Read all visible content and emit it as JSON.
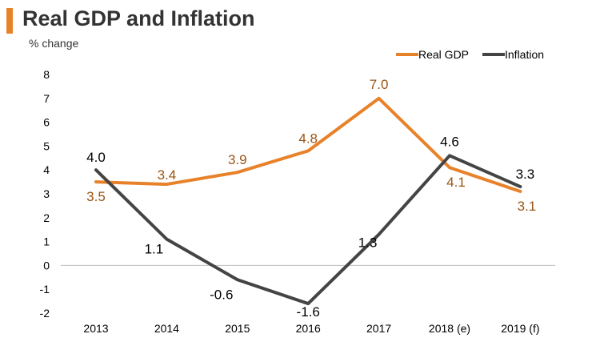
{
  "chart_data": {
    "type": "line",
    "title": "Real GDP and Inflation",
    "subtitle": "% change",
    "categories": [
      "2013",
      "2014",
      "2015",
      "2016",
      "2017",
      "2018 (e)",
      "2019 (f)"
    ],
    "series": [
      {
        "name": "Real GDP",
        "color": "#e8822a",
        "label_color": "#9a5514",
        "values": [
          3.5,
          3.4,
          3.9,
          4.8,
          7.0,
          4.1,
          3.1
        ],
        "labels": [
          "3.5",
          "3.4",
          "3.9",
          "4.8",
          "7.0",
          "4.1",
          "3.1"
        ]
      },
      {
        "name": "Inflation",
        "color": "#444444",
        "label_color": "#000000",
        "values": [
          4.0,
          1.1,
          -0.6,
          -1.6,
          1.3,
          4.6,
          3.3
        ],
        "labels": [
          "4.0",
          "1.1",
          "-0.6",
          "-1.6",
          "1.3",
          "4.6",
          "3.3"
        ]
      }
    ],
    "ylim": [
      -2,
      8
    ],
    "yticks": [
      "8",
      "7",
      "6",
      "5",
      "4",
      "3",
      "2",
      "1",
      "0",
      "-1",
      "-2"
    ],
    "legend": "top-right",
    "grid": false
  }
}
